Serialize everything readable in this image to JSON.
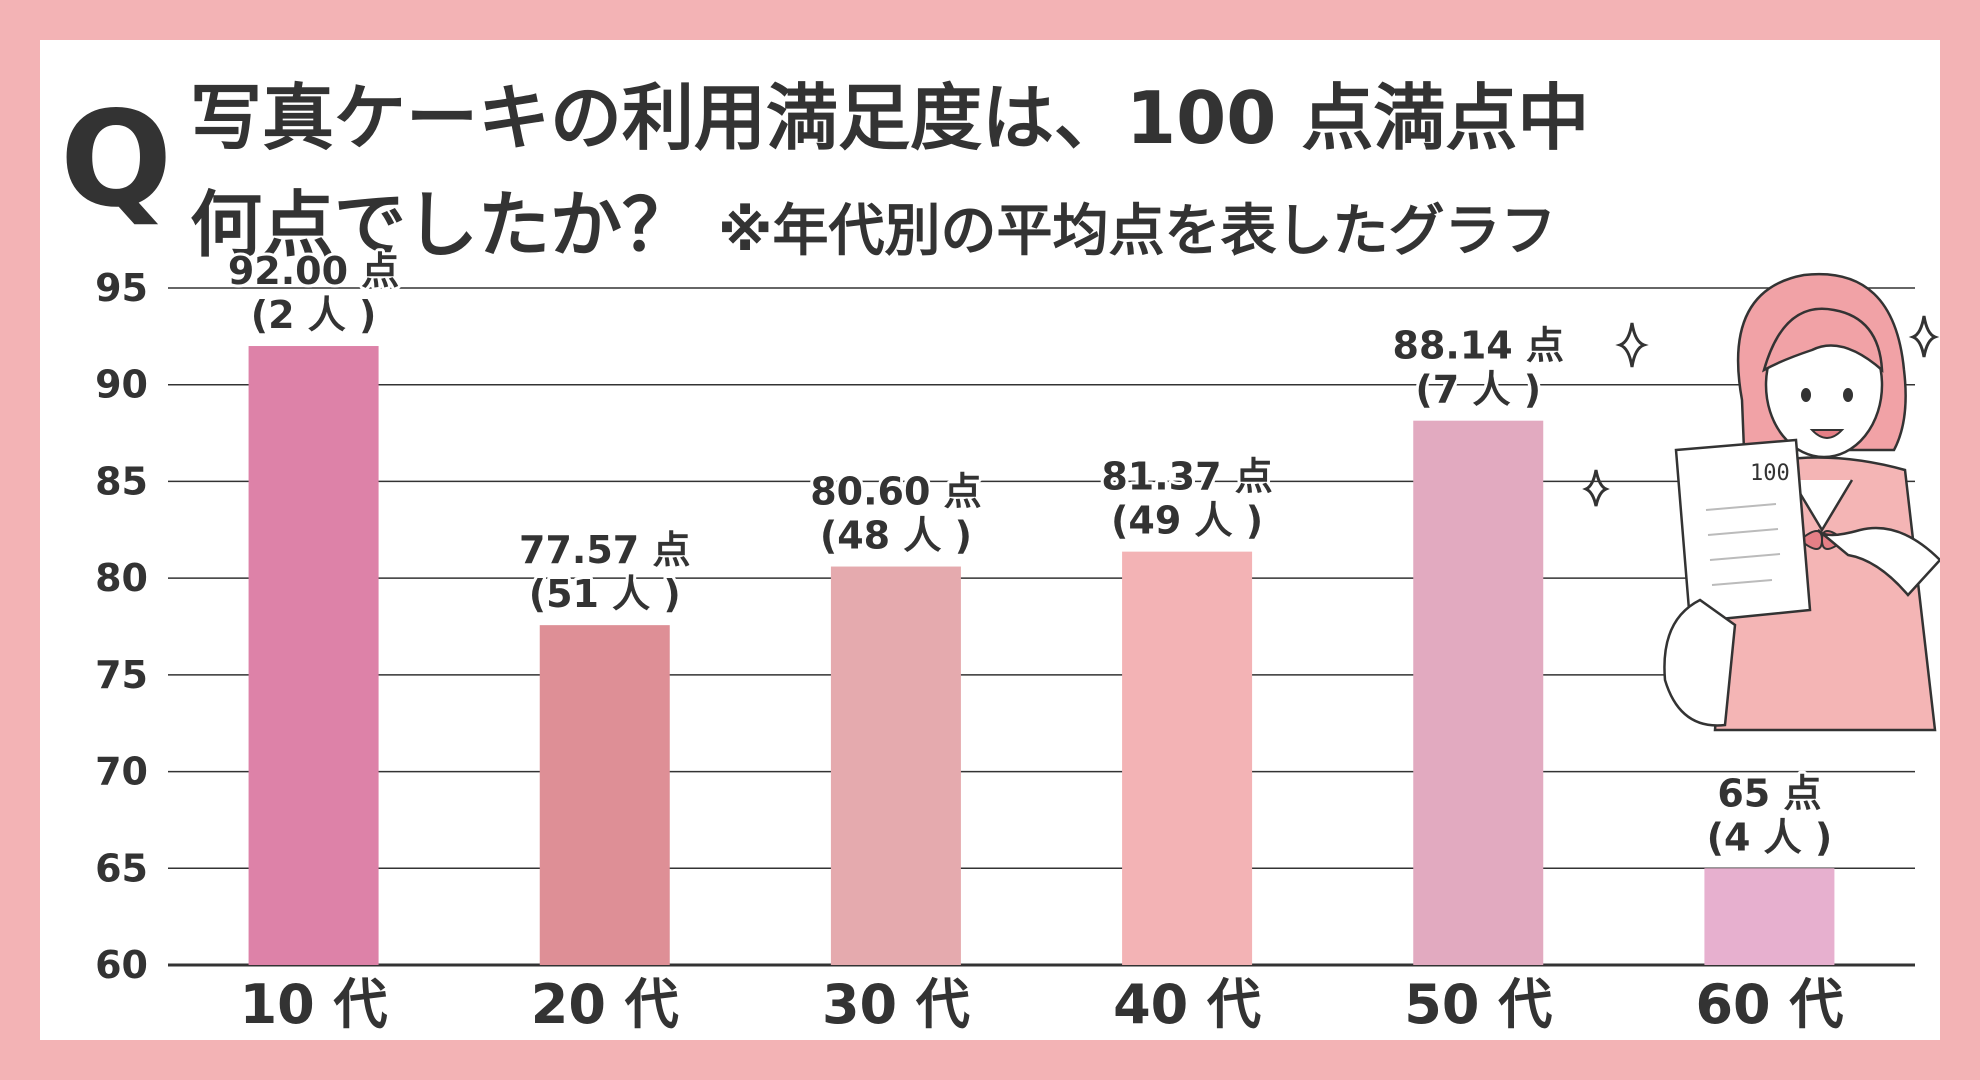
{
  "title": {
    "q_mark": "Q",
    "line1": "写真ケーキの利用満足度は、100 点満点中",
    "line2_main": "何点でしたか？",
    "line2_note": "※年代別の平均点を表したグラフ"
  },
  "chart_data": {
    "type": "bar",
    "categories": [
      "10 代",
      "20 代",
      "30 代",
      "40 代",
      "50 代",
      "60 代"
    ],
    "values": [
      92.0,
      77.57,
      80.6,
      81.37,
      88.14,
      65
    ],
    "value_labels": [
      "92.00 点",
      "77.57 点",
      "80.60 点",
      "81.37 点",
      "88.14 点",
      "65 点"
    ],
    "count_labels": [
      "(2 人 )",
      "(51 人 )",
      "(48 人 )",
      "(49 人 )",
      "(7 人 )",
      "(4 人 )"
    ],
    "bar_colors": [
      "#dd82a8",
      "#de8f96",
      "#e5aaae",
      "#f3b3b5",
      "#e2aac0",
      "#e7b0cf"
    ],
    "ylim": [
      60,
      95
    ],
    "yticks": [
      95,
      90,
      85,
      80,
      75,
      70,
      65,
      60
    ],
    "grid": true,
    "xlabel": "",
    "ylabel": ""
  },
  "colors": {
    "background": "#f3b3b5",
    "card": "#ffffff",
    "text": "#333333",
    "gridline": "#333333"
  }
}
